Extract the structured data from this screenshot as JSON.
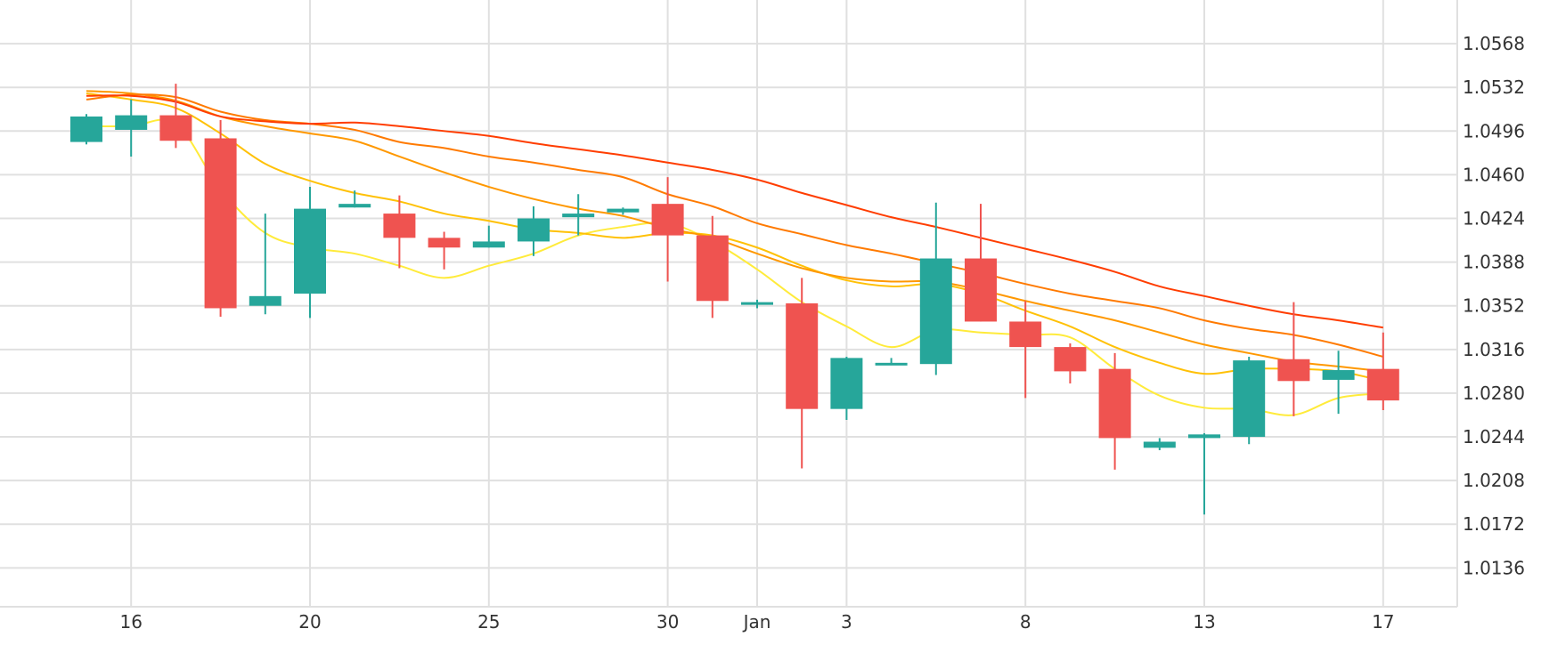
{
  "chart_data": {
    "type": "candlestick",
    "title": "",
    "xlabel": "",
    "ylabel": "",
    "ylim": [
      1.0104,
      1.0604
    ],
    "grid": true,
    "y_ticks": [
      1.0136,
      1.0172,
      1.0208,
      1.0244,
      1.028,
      1.0316,
      1.0352,
      1.0388,
      1.0424,
      1.046,
      1.0496,
      1.0532,
      1.0568
    ],
    "x_ticks": [
      {
        "index": 1,
        "label": "16"
      },
      {
        "index": 5,
        "label": "20"
      },
      {
        "index": 9,
        "label": "25"
      },
      {
        "index": 13,
        "label": "30"
      },
      {
        "index": 15,
        "label": "Jan"
      },
      {
        "index": 17,
        "label": "3"
      },
      {
        "index": 21,
        "label": "8"
      },
      {
        "index": 25,
        "label": "13"
      },
      {
        "index": 29,
        "label": "17"
      }
    ],
    "colors": {
      "up": "#26a69a",
      "down": "#ef5350",
      "grid": "#e0e0e0"
    },
    "candles": [
      {
        "o": 1.0487,
        "h": 1.051,
        "l": 1.0485,
        "c": 1.0508
      },
      {
        "o": 1.0497,
        "h": 1.0522,
        "l": 1.0475,
        "c": 1.0509
      },
      {
        "o": 1.0509,
        "h": 1.0535,
        "l": 1.0482,
        "c": 1.0488
      },
      {
        "o": 1.049,
        "h": 1.0505,
        "l": 1.0343,
        "c": 1.035
      },
      {
        "o": 1.0352,
        "h": 1.0428,
        "l": 1.0345,
        "c": 1.036
      },
      {
        "o": 1.0362,
        "h": 1.045,
        "l": 1.0342,
        "c": 1.0432
      },
      {
        "o": 1.0433,
        "h": 1.0447,
        "l": 1.0433,
        "c": 1.0436
      },
      {
        "o": 1.0428,
        "h": 1.0443,
        "l": 1.0383,
        "c": 1.0408
      },
      {
        "o": 1.0408,
        "h": 1.0413,
        "l": 1.0382,
        "c": 1.04
      },
      {
        "o": 1.04,
        "h": 1.0418,
        "l": 1.04,
        "c": 1.0405
      },
      {
        "o": 1.0405,
        "h": 1.0434,
        "l": 1.0393,
        "c": 1.0424
      },
      {
        "o": 1.0425,
        "h": 1.0444,
        "l": 1.041,
        "c": 1.0428
      },
      {
        "o": 1.0429,
        "h": 1.0433,
        "l": 1.0427,
        "c": 1.0432
      },
      {
        "o": 1.0436,
        "h": 1.0458,
        "l": 1.0372,
        "c": 1.041
      },
      {
        "o": 1.041,
        "h": 1.0426,
        "l": 1.0342,
        "c": 1.0356
      },
      {
        "o": 1.0355,
        "h": 1.0357,
        "l": 1.035,
        "c": 1.0355
      },
      {
        "o": 1.0354,
        "h": 1.0375,
        "l": 1.0218,
        "c": 1.0267
      },
      {
        "o": 1.0267,
        "h": 1.031,
        "l": 1.0258,
        "c": 1.0309
      },
      {
        "o": 1.0303,
        "h": 1.0309,
        "l": 1.0303,
        "c": 1.0305
      },
      {
        "o": 1.0304,
        "h": 1.0437,
        "l": 1.0295,
        "c": 1.0391
      },
      {
        "o": 1.0391,
        "h": 1.0436,
        "l": 1.0339,
        "c": 1.0339
      },
      {
        "o": 1.0339,
        "h": 1.0356,
        "l": 1.0276,
        "c": 1.0318
      },
      {
        "o": 1.0318,
        "h": 1.0321,
        "l": 1.0288,
        "c": 1.0298
      },
      {
        "o": 1.03,
        "h": 1.0313,
        "l": 1.0217,
        "c": 1.0243
      },
      {
        "o": 1.0235,
        "h": 1.0243,
        "l": 1.0233,
        "c": 1.024
      },
      {
        "o": 1.0243,
        "h": 1.0247,
        "l": 1.018,
        "c": 1.0246
      },
      {
        "o": 1.0244,
        "h": 1.031,
        "l": 1.0238,
        "c": 1.0307
      },
      {
        "o": 1.0308,
        "h": 1.0355,
        "l": 1.0261,
        "c": 1.029
      },
      {
        "o": 1.0291,
        "h": 1.0315,
        "l": 1.0263,
        "c": 1.0299
      },
      {
        "o": 1.03,
        "h": 1.033,
        "l": 1.0266,
        "c": 1.0274
      }
    ],
    "moving_averages": [
      {
        "color": "#ffeb3b",
        "start": 0,
        "values": [
          1.05,
          1.05,
          1.0502,
          1.0448,
          1.0412,
          1.04,
          1.0395,
          1.0385,
          1.0375,
          1.0385,
          1.0395,
          1.041,
          1.0417,
          1.042,
          1.0405,
          1.0382,
          1.0355,
          1.0335,
          1.0318,
          1.0332,
          1.033,
          1.0328,
          1.0326,
          1.03,
          1.0278,
          1.0268,
          1.0267,
          1.0262,
          1.0276,
          1.028
        ]
      },
      {
        "color": "#ffc107",
        "start": 0,
        "values": [
          1.0527,
          1.0522,
          1.0515,
          1.0494,
          1.0469,
          1.0455,
          1.0445,
          1.0438,
          1.0428,
          1.0422,
          1.0415,
          1.0412,
          1.0408,
          1.0412,
          1.041,
          1.04,
          1.0385,
          1.0373,
          1.0368,
          1.037,
          1.0362,
          1.0348,
          1.0335,
          1.0318,
          1.0305,
          1.0296,
          1.03,
          1.03,
          1.0298,
          1.029
        ]
      },
      {
        "color": "#ff9800",
        "start": 0,
        "values": [
          1.0529,
          1.0527,
          1.0521,
          1.0508,
          1.05,
          1.0494,
          1.0488,
          1.0475,
          1.0462,
          1.045,
          1.044,
          1.0432,
          1.0426,
          1.0416,
          1.0408,
          1.0395,
          1.0383,
          1.0375,
          1.0372,
          1.0372,
          1.0365,
          1.0356,
          1.0348,
          1.034,
          1.033,
          1.032,
          1.0313,
          1.0306,
          1.0302,
          1.0298
        ]
      },
      {
        "color": "#ff7a00",
        "start": 0,
        "values": [
          1.0522,
          1.0526,
          1.0524,
          1.0512,
          1.0505,
          1.0502,
          1.0497,
          1.0487,
          1.0482,
          1.0475,
          1.047,
          1.0464,
          1.0458,
          1.0444,
          1.0434,
          1.042,
          1.0411,
          1.0402,
          1.0395,
          1.0387,
          1.0379,
          1.037,
          1.0362,
          1.0356,
          1.035,
          1.034,
          1.0333,
          1.0328,
          1.032,
          1.031
        ]
      },
      {
        "color": "#ff3d00",
        "start": 0,
        "values": [
          1.0525,
          1.0525,
          1.052,
          1.0508,
          1.0504,
          1.0502,
          1.0503,
          1.05,
          1.0496,
          1.0492,
          1.0486,
          1.0481,
          1.0476,
          1.047,
          1.0464,
          1.0456,
          1.0445,
          1.0435,
          1.0425,
          1.0417,
          1.0408,
          1.0399,
          1.039,
          1.038,
          1.0368,
          1.036,
          1.0352,
          1.0345,
          1.034,
          1.0334
        ]
      }
    ]
  }
}
